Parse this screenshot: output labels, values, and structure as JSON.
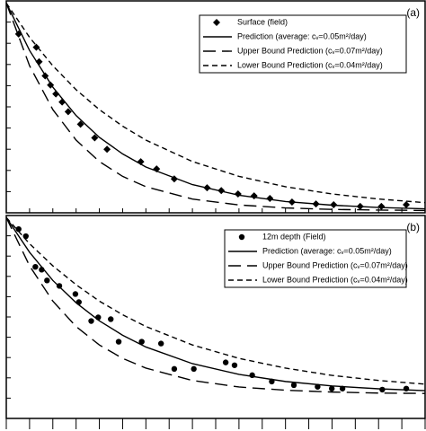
{
  "chart_data": [
    {
      "type": "line",
      "label": "(a)",
      "legend": "upper right",
      "xlim": [
        0,
        18
      ],
      "ylim": [
        0,
        10
      ],
      "xticks": [
        0,
        1,
        2,
        3,
        4,
        5,
        6,
        7,
        8,
        9,
        10,
        11,
        12,
        13,
        14,
        15,
        16,
        17,
        18
      ],
      "yticks": [
        0,
        1,
        2,
        3,
        4,
        5,
        6,
        7,
        8,
        9,
        10
      ],
      "series": [
        {
          "name": "Surface (field)",
          "color": "#000000",
          "marker": "diamond",
          "x": [
            0.53,
            1.29,
            1.41,
            1.67,
            1.9,
            2.13,
            2.4,
            2.66,
            3.19,
            3.8,
            4.33,
            5.78,
            6.46,
            7.22,
            8.63,
            9.24,
            9.96,
            10.65,
            11.33,
            12.28,
            13.31,
            14.07,
            15.21,
            16.12,
            17.19
          ],
          "values": [
            8.44,
            7.81,
            7.13,
            6.46,
            6.03,
            5.61,
            5.23,
            4.77,
            4.18,
            3.54,
            3.0,
            2.41,
            2.07,
            1.6,
            1.18,
            1.05,
            0.89,
            0.8,
            0.68,
            0.51,
            0.42,
            0.38,
            0.3,
            0.3,
            0.38
          ]
        },
        {
          "name": "Prediction (average: cᵥ=0.05m²/day)",
          "color": "#000000",
          "dash": "solid",
          "x": [
            0,
            1,
            2,
            3,
            4,
            5,
            6,
            8,
            10,
            12,
            14,
            16,
            18
          ],
          "values": [
            9.9,
            7.66,
            5.93,
            4.59,
            3.56,
            2.78,
            2.16,
            1.33,
            0.83,
            0.53,
            0.36,
            0.25,
            0.19
          ]
        },
        {
          "name": "Upper Bound Prediction (cᵥ=0.07m²/day)",
          "color": "#000000",
          "dash": "long-dash",
          "x": [
            0,
            1,
            2,
            3,
            4,
            5,
            6,
            8,
            10,
            12,
            14,
            16,
            18
          ],
          "values": [
            9.9,
            6.94,
            4.87,
            3.43,
            2.42,
            1.72,
            1.23,
            0.65,
            0.37,
            0.23,
            0.16,
            0.13,
            0.11
          ]
        },
        {
          "name": "Lower Bound Prediction (cᵥ=0.04m²/day)",
          "color": "#000000",
          "dash": "short-dash",
          "x": [
            0,
            1,
            2,
            3,
            4,
            5,
            6,
            8,
            10,
            12,
            14,
            16,
            18
          ],
          "values": [
            9.9,
            8.28,
            6.94,
            5.81,
            4.87,
            4.09,
            3.43,
            2.42,
            1.72,
            1.23,
            0.89,
            0.65,
            0.48
          ]
        }
      ]
    },
    {
      "type": "line",
      "label": "(b)",
      "legend": "upper right",
      "xlim": [
        0,
        18
      ],
      "ylim": [
        0,
        10
      ],
      "xticks": [
        0,
        1,
        2,
        3,
        4,
        5,
        6,
        7,
        8,
        9,
        10,
        11,
        12,
        13,
        14,
        15,
        16,
        17,
        18
      ],
      "yticks": [
        0,
        1,
        2,
        3,
        4,
        5,
        6,
        7,
        8,
        9,
        10
      ],
      "series": [
        {
          "name": "12m depth (Field)",
          "color": "#000000",
          "marker": "circle",
          "x": [
            0.53,
            0.84,
            1.25,
            1.52,
            1.75,
            2.28,
            2.97,
            3.12,
            3.65,
            3.95,
            4.49,
            4.83,
            5.82,
            6.65,
            7.22,
            8.06,
            9.43,
            9.81,
            10.57,
            11.41,
            12.36,
            13.38,
            13.99,
            14.45,
            16.16,
            17.19
          ],
          "values": [
            9.33,
            8.98,
            7.47,
            7.33,
            6.8,
            6.53,
            6.13,
            5.73,
            4.8,
            4.98,
            4.89,
            3.78,
            3.78,
            3.69,
            2.44,
            2.44,
            2.76,
            2.62,
            2.13,
            1.82,
            1.64,
            1.56,
            1.47,
            1.47,
            1.42,
            1.47
          ]
        },
        {
          "name": "Prediction (average: cᵥ=0.05m²/day)",
          "color": "#000000",
          "dash": "solid",
          "x": [
            0,
            1,
            2,
            3,
            4,
            5,
            6,
            8,
            10,
            12,
            14,
            16,
            18
          ],
          "values": [
            9.9,
            8.19,
            6.8,
            5.7,
            4.81,
            4.1,
            3.52,
            2.7,
            2.17,
            1.82,
            1.6,
            1.46,
            1.37
          ]
        },
        {
          "name": "Upper Bound Prediction (cᵥ=0.07m²/day)",
          "color": "#000000",
          "dash": "long-dash",
          "x": [
            0,
            1,
            2,
            3,
            4,
            5,
            6,
            8,
            10,
            12,
            14,
            16,
            18
          ],
          "values": [
            9.9,
            7.52,
            5.78,
            4.53,
            3.62,
            2.96,
            2.48,
            1.87,
            1.55,
            1.39,
            1.3,
            1.25,
            1.23
          ]
        },
        {
          "name": "Lower Bound Prediction (cᵥ=0.04m²/day)",
          "color": "#000000",
          "dash": "short-dash",
          "x": [
            0,
            1,
            2,
            3,
            4,
            5,
            6,
            8,
            10,
            12,
            14,
            16,
            18
          ],
          "values": [
            9.9,
            8.61,
            7.52,
            6.59,
            5.78,
            5.11,
            4.53,
            3.62,
            2.96,
            2.48,
            2.12,
            1.87,
            1.69
          ]
        }
      ]
    }
  ]
}
